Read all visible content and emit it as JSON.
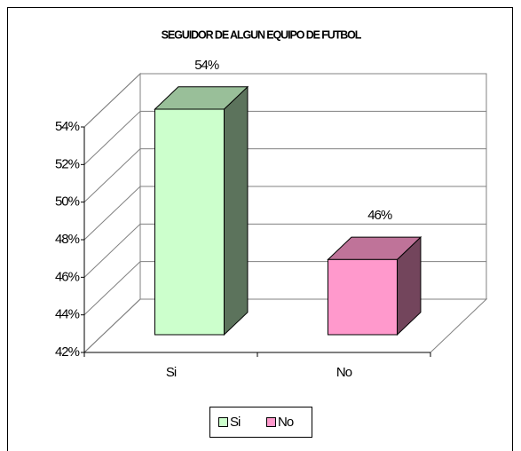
{
  "chart_data": {
    "type": "bar3d",
    "title": "SEGUIDOR DE ALGUN EQUIPO DE FUTBOL",
    "categories": [
      "Si",
      "No"
    ],
    "values": [
      54,
      46
    ],
    "value_labels": [
      "54%",
      "46%"
    ],
    "colors": [
      "#ccffcc",
      "#ff99cc"
    ],
    "ylim": [
      42,
      54
    ],
    "yticks": [
      {
        "value": 42,
        "label": "42%"
      },
      {
        "value": 44,
        "label": "44%"
      },
      {
        "value": 46,
        "label": "46%"
      },
      {
        "value": 48,
        "label": "48%"
      },
      {
        "value": 50,
        "label": "50%"
      },
      {
        "value": 52,
        "label": "52%"
      },
      {
        "value": 54,
        "label": "54%"
      }
    ],
    "grid": true,
    "legend": "bottom"
  }
}
